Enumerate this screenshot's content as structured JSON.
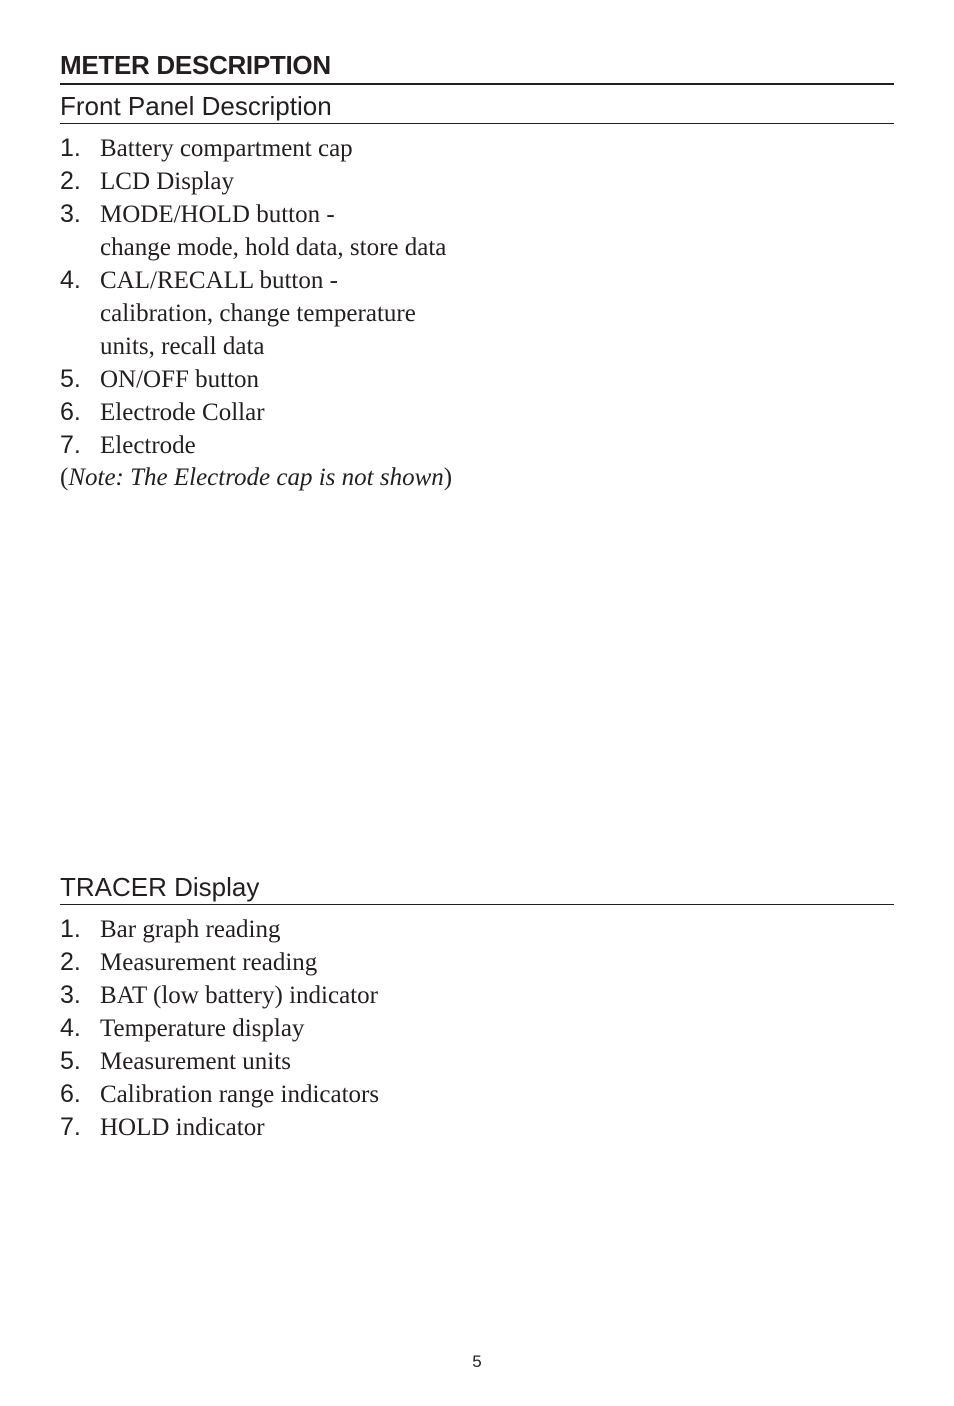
{
  "colors": {
    "text": "#231f20",
    "background": "#ffffff",
    "rule": "#231f20"
  },
  "typography": {
    "heading_font": "Arial, Helvetica, sans-serif",
    "body_font": "Georgia, 'Times New Roman', serif",
    "heading_size_pt": 20,
    "body_size_pt": 19,
    "page_num_size_pt": 13
  },
  "section_heading": "METER DESCRIPTION",
  "front_panel": {
    "heading": "Front Panel Description",
    "items": [
      {
        "num": "1.",
        "text": "Battery compartment cap"
      },
      {
        "num": "2.",
        "text": "LCD Display"
      },
      {
        "num": "3.",
        "text": "MODE/HOLD button -",
        "text2": "change mode, hold data, store data"
      },
      {
        "num": "4.",
        "text": "CAL/RECALL button -",
        "text2": "calibration, change temperature",
        "text3": "units, recall data"
      },
      {
        "num": "5.",
        "text": "ON/OFF button"
      },
      {
        "num": "6.",
        "text": "Electrode Collar"
      },
      {
        "num": "7.",
        "text": "Electrode"
      }
    ],
    "note_open": "(",
    "note_italic": "Note: The Electrode cap is not shown",
    "note_close": ")"
  },
  "tracer": {
    "heading": "TRACER Display",
    "items": [
      {
        "num": "1.",
        "text": "Bar graph reading"
      },
      {
        "num": "2.",
        "text": "Measurement reading"
      },
      {
        "num": "3.",
        "text": "BAT (low battery) indicator"
      },
      {
        "num": "4.",
        "text": "Temperature display"
      },
      {
        "num": "5.",
        "text": "Measurement units"
      },
      {
        "num": "6.",
        "text": "Calibration range indicators"
      },
      {
        "num": "7.",
        "text": "HOLD indicator"
      }
    ]
  },
  "page_number": "5"
}
